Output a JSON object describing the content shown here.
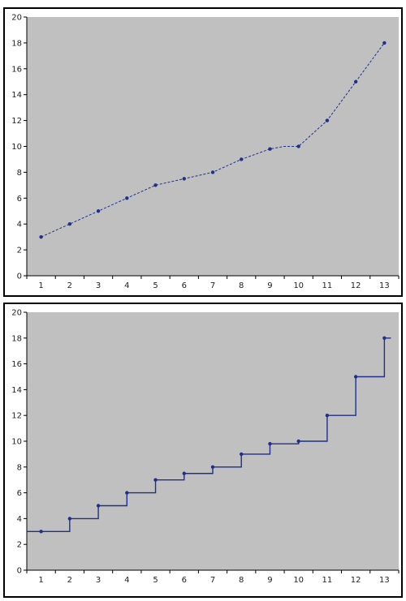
{
  "chart_data": [
    {
      "type": "line",
      "title": "",
      "xlabel": "",
      "ylabel": "",
      "x": [
        1,
        2,
        3,
        4,
        5,
        6,
        7,
        8,
        9,
        10,
        11,
        12,
        13
      ],
      "y_ticks": [
        0,
        2,
        4,
        6,
        8,
        10,
        12,
        14,
        16,
        18,
        20
      ],
      "ylim": [
        0,
        20
      ],
      "grid": false,
      "legend": "none",
      "colors": {
        "plot_bg": "#c0c0c0",
        "series": "#1f2f8c"
      },
      "series": [
        {
          "points": [
            [
              1,
              3
            ],
            [
              2,
              4
            ],
            [
              3,
              5
            ],
            [
              4,
              6
            ],
            [
              5,
              7
            ],
            [
              6,
              7.5
            ],
            [
              7,
              8
            ],
            [
              8,
              9
            ],
            [
              9,
              9.8
            ],
            [
              9.5,
              10
            ],
            [
              10,
              10
            ],
            [
              11,
              12
            ],
            [
              12,
              15
            ],
            [
              13,
              18
            ]
          ]
        }
      ]
    },
    {
      "type": "line",
      "subtype": "step",
      "title": "",
      "xlabel": "",
      "ylabel": "",
      "x": [
        1,
        2,
        3,
        4,
        5,
        6,
        7,
        8,
        9,
        10,
        11,
        12,
        13
      ],
      "y_ticks": [
        0,
        2,
        4,
        6,
        8,
        10,
        12,
        14,
        16,
        18,
        20
      ],
      "ylim": [
        0,
        20
      ],
      "grid": false,
      "legend": "none",
      "colors": {
        "plot_bg": "#c0c0c0",
        "series": "#1f2f8c"
      },
      "series": [
        {
          "points": [
            [
              0.5,
              3
            ],
            [
              1,
              3
            ],
            [
              2,
              4
            ],
            [
              3,
              5
            ],
            [
              4,
              6
            ],
            [
              5,
              7
            ],
            [
              6,
              7.5
            ],
            [
              7,
              8
            ],
            [
              8,
              9
            ],
            [
              9,
              9.8
            ],
            [
              10,
              10
            ],
            [
              11,
              12
            ],
            [
              12,
              15
            ],
            [
              13,
              18
            ]
          ]
        }
      ]
    }
  ]
}
